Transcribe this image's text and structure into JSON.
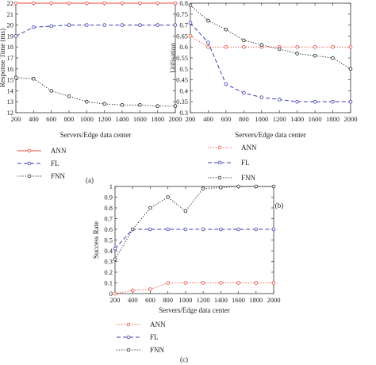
{
  "colors": {
    "ANN": "#e8473b",
    "FL": "#3b3fa8",
    "FNN": "#222222"
  },
  "chart_data": [
    {
      "id": "a",
      "type": "line",
      "caption": "(a)",
      "xlabel": "Servers/Edge data center",
      "ylabel": "Response Time (ms)",
      "x": [
        200,
        400,
        600,
        800,
        1000,
        1200,
        1400,
        1600,
        1800,
        2000
      ],
      "xticks": [
        200,
        400,
        600,
        800,
        1000,
        1200,
        1400,
        1600,
        1800,
        2000
      ],
      "xlim": [
        200,
        2000
      ],
      "ylim": [
        12,
        22
      ],
      "yticks": [
        12,
        13,
        14,
        15,
        16,
        17,
        18,
        19,
        20,
        21,
        22
      ],
      "grid": false,
      "legend_placement": "below",
      "series": [
        {
          "name": "ANN",
          "style": "solid",
          "values": [
            22,
            22,
            22,
            22,
            22,
            22,
            22,
            22,
            22,
            22
          ]
        },
        {
          "name": "FL",
          "style": "dashed",
          "values": [
            19.0,
            19.8,
            19.9,
            20.0,
            20.0,
            20.0,
            20.0,
            20.0,
            20.0,
            20.0
          ]
        },
        {
          "name": "FNN",
          "style": "dotted",
          "values": [
            15.2,
            15.1,
            14.0,
            13.5,
            13.0,
            12.8,
            12.7,
            12.7,
            12.6,
            12.6
          ]
        }
      ]
    },
    {
      "id": "b",
      "type": "line",
      "caption": "(b)",
      "xlabel": "Servers/Edge data center",
      "ylabel": "Utilisation",
      "x": [
        200,
        400,
        600,
        800,
        1000,
        1200,
        1400,
        1600,
        1800,
        2000
      ],
      "xticks": [
        200,
        400,
        600,
        800,
        1000,
        1200,
        1400,
        1600,
        1800,
        2000
      ],
      "xlim": [
        200,
        2000
      ],
      "ylim": [
        0.3,
        0.8
      ],
      "yticks": [
        0.3,
        0.35,
        0.4,
        0.45,
        0.5,
        0.55,
        0.6,
        0.65,
        0.7,
        0.75,
        0.8
      ],
      "grid": false,
      "legend_placement": "below",
      "series": [
        {
          "name": "ANN",
          "style": "dotted",
          "values": [
            0.65,
            0.6,
            0.6,
            0.6,
            0.6,
            0.6,
            0.6,
            0.6,
            0.6,
            0.6
          ]
        },
        {
          "name": "FL",
          "style": "dashed",
          "values": [
            0.71,
            0.62,
            0.43,
            0.39,
            0.37,
            0.36,
            0.35,
            0.35,
            0.35,
            0.35
          ]
        },
        {
          "name": "FNN",
          "style": "dotted",
          "values": [
            0.79,
            0.72,
            0.68,
            0.63,
            0.61,
            0.59,
            0.57,
            0.56,
            0.55,
            0.5
          ]
        }
      ]
    },
    {
      "id": "c",
      "type": "line",
      "caption": "(c)",
      "xlabel": "Servers/Edge data center",
      "ylabel": "Success Rate",
      "x": [
        200,
        400,
        600,
        800,
        1000,
        1200,
        1400,
        1600,
        1800,
        2000
      ],
      "xticks": [
        200,
        400,
        600,
        800,
        1000,
        1200,
        1400,
        1600,
        1800,
        2000
      ],
      "xlim": [
        200,
        2000
      ],
      "ylim": [
        0,
        1
      ],
      "yticks": [
        0,
        0.1,
        0.2,
        0.3,
        0.4,
        0.5,
        0.6,
        0.7,
        0.8,
        0.9,
        1
      ],
      "grid": false,
      "legend_placement": "below",
      "series": [
        {
          "name": "ANN",
          "style": "dotted",
          "values": [
            0.0,
            0.03,
            0.04,
            0.1,
            0.1,
            0.1,
            0.1,
            0.1,
            0.1,
            0.1
          ]
        },
        {
          "name": "FL",
          "style": "dashed",
          "values": [
            0.42,
            0.6,
            0.6,
            0.6,
            0.6,
            0.6,
            0.6,
            0.6,
            0.6,
            0.6
          ]
        },
        {
          "name": "FNN",
          "style": "dotted",
          "values": [
            0.32,
            0.6,
            0.8,
            0.9,
            0.77,
            0.98,
            0.99,
            1.0,
            1.0,
            1.0
          ]
        }
      ]
    }
  ]
}
